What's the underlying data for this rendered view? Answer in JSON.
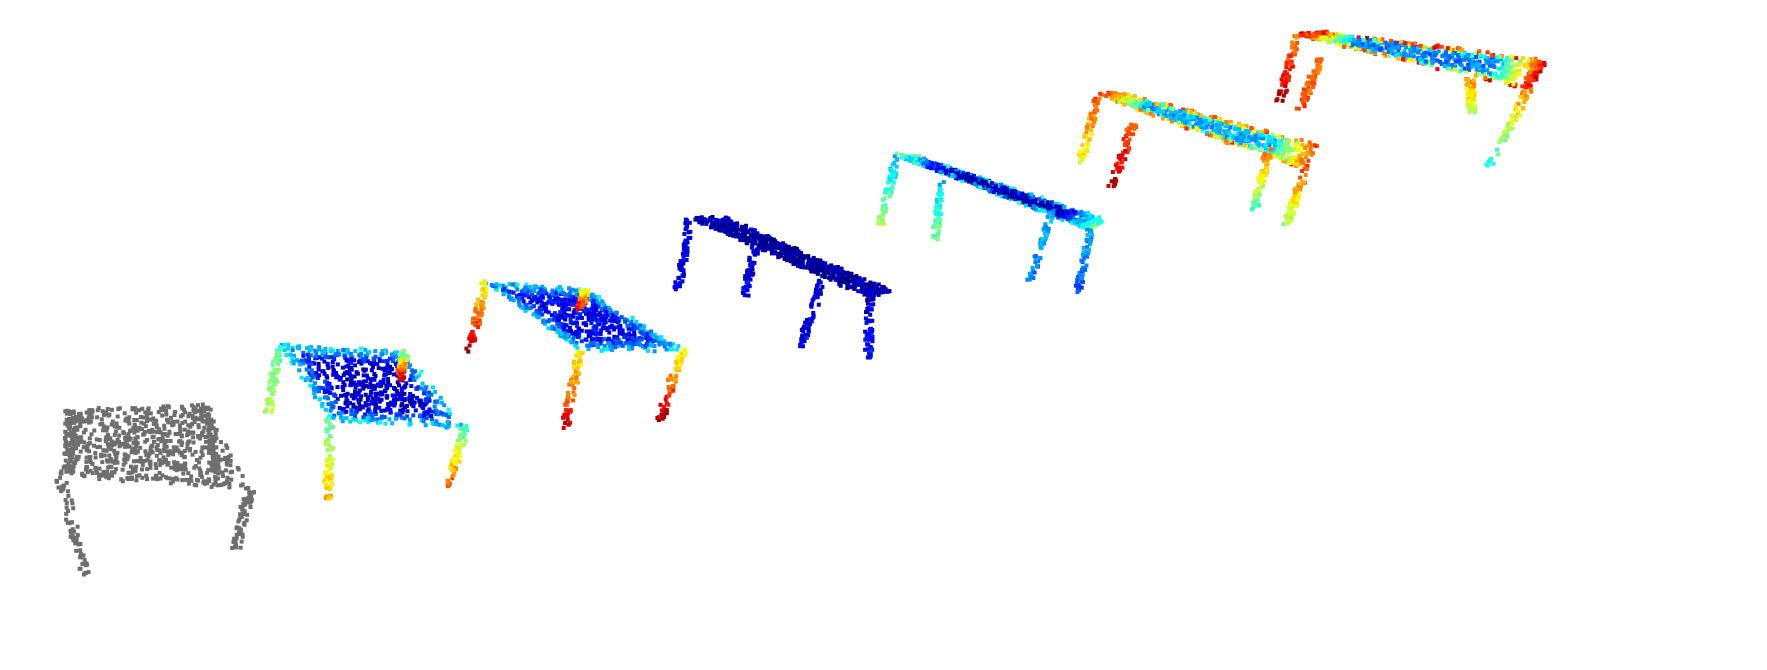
{
  "scene": {
    "background": "#ffffff",
    "point_clouds": [
      {
        "id": "gray-table",
        "coloring": "uniform",
        "color": "#6e6e6e"
      },
      {
        "id": "table-2",
        "coloring": "jet",
        "top": 0.08,
        "top_edge": 0.35,
        "leg_start": 0.45,
        "leg_end": [
          0.55,
          0.72,
          0.8,
          0.95
        ]
      },
      {
        "id": "table-3",
        "coloring": "jet",
        "top": 0.12,
        "top_edge": 0.32,
        "leg_start": 0.6,
        "leg_end": [
          0.95,
          0.92,
          0.97,
          0.9
        ]
      },
      {
        "id": "table-4",
        "coloring": "jet",
        "top": 0.02,
        "top_edge": 0.05,
        "leg_start": 0.08,
        "leg_end": [
          0.1,
          0.12,
          0.15,
          0.12
        ]
      },
      {
        "id": "table-5",
        "coloring": "jet",
        "top": 0.05,
        "top_edge": 0.45,
        "leg_start": 0.3,
        "leg_end": [
          0.55,
          0.5,
          0.2,
          0.25
        ]
      },
      {
        "id": "table-6",
        "coloring": "jet",
        "top": 0.3,
        "top_edge": 0.82,
        "leg_start": 0.8,
        "leg_end": [
          0.6,
          0.95,
          0.5,
          0.45
        ]
      },
      {
        "id": "table-7",
        "coloring": "jet",
        "top": 0.25,
        "top_edge": 0.9,
        "leg_start": 0.75,
        "leg_end": [
          0.95,
          0.8,
          0.4,
          0.55
        ]
      }
    ]
  }
}
